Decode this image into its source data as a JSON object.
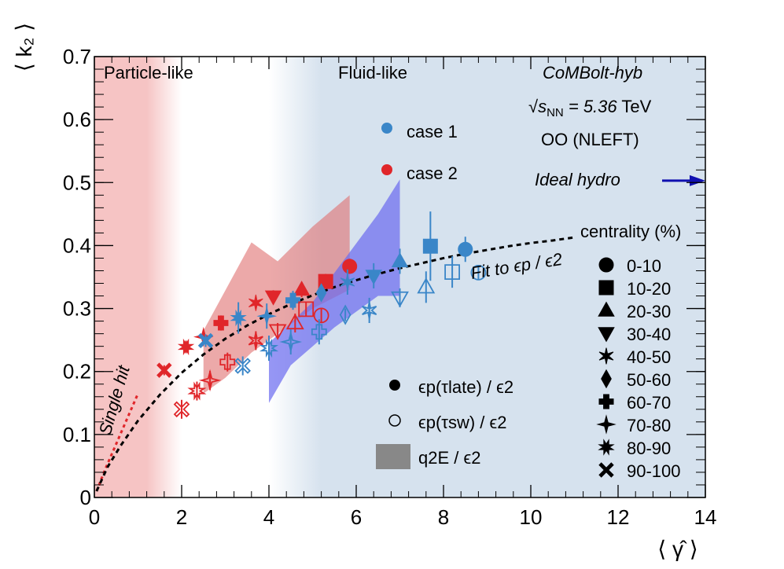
{
  "chart_data": {
    "type": "scatter",
    "xlabel": "⟨ γ̂ ⟩",
    "ylabel": "⟨ k₂ ⟩",
    "xlim": [
      0,
      14
    ],
    "ylim": [
      0,
      0.7
    ],
    "xticks": [
      "0",
      "2",
      "4",
      "6",
      "8",
      "10",
      "12",
      "14"
    ],
    "yticks": [
      "0",
      "0.1",
      "0.2",
      "0.3",
      "0.4",
      "0.5",
      "0.6",
      "0.7"
    ],
    "x_tick_values": [
      0,
      2,
      4,
      6,
      8,
      10,
      12,
      14
    ],
    "y_tick_values": [
      0,
      0.1,
      0.2,
      0.3,
      0.4,
      0.5,
      0.6,
      0.7
    ],
    "regions": {
      "particle_like": "Particle-like",
      "fluid_like": "Fluid-like"
    },
    "annotations": {
      "model": "CoMBolt-hyb",
      "energy_prefix": "√",
      "energy_s": "s",
      "energy_sub": "NN",
      "energy_value": " = 5.36",
      "energy_unit": " TeV",
      "system": "OO (NLEFT)",
      "ideal_hydro": "Ideal hydro",
      "fit": "Fit to ϵp / ϵ2",
      "single_hit": "Single hit"
    },
    "legend_case": [
      {
        "label": "case 1",
        "color": "#3a86c8"
      },
      {
        "label": "case 2",
        "color": "#e0262a"
      }
    ],
    "legend_quantity": [
      {
        "label": "ϵp(τlate) / ϵ2",
        "marker": "filled-circle"
      },
      {
        "label": "ϵp(τsw) / ϵ2",
        "marker": "open-circle"
      },
      {
        "label": "q2E / ϵ2",
        "marker": "grey-box"
      }
    ],
    "legend_centrality_title": "centrality (%)",
    "legend_centrality": [
      {
        "label": "0-10",
        "marker": "circle"
      },
      {
        "label": "10-20",
        "marker": "square"
      },
      {
        "label": "20-30",
        "marker": "triangle-up"
      },
      {
        "label": "30-40",
        "marker": "triangle-down"
      },
      {
        "label": "40-50",
        "marker": "star"
      },
      {
        "label": "50-60",
        "marker": "diamond"
      },
      {
        "label": "60-70",
        "marker": "cross"
      },
      {
        "label": "70-80",
        "marker": "star4"
      },
      {
        "label": "80-90",
        "marker": "cross-x"
      },
      {
        "label": "90-100",
        "marker": "x"
      }
    ],
    "colors": {
      "case1": "#3a86c8",
      "case2": "#e0262a",
      "fit": "#000000",
      "single_hit": "#e0262a",
      "ideal_hydro": "#1010b0",
      "band_case1": "#6a6af0",
      "band_case2": "#e07070",
      "particle_bg": "#f6c4c4",
      "fluid_bg": "#d6e2ee"
    },
    "ideal_hydro_y": 0.503,
    "fit_curve": [
      [
        0.05,
        0.01
      ],
      [
        0.3,
        0.048
      ],
      [
        0.6,
        0.082
      ],
      [
        1.0,
        0.122
      ],
      [
        1.5,
        0.163
      ],
      [
        2.0,
        0.198
      ],
      [
        2.5,
        0.227
      ],
      [
        3.0,
        0.252
      ],
      [
        3.5,
        0.273
      ],
      [
        4.0,
        0.291
      ],
      [
        4.5,
        0.307
      ],
      [
        5.0,
        0.321
      ],
      [
        5.5,
        0.334
      ],
      [
        6.0,
        0.345
      ],
      [
        6.5,
        0.355
      ],
      [
        7.0,
        0.364
      ],
      [
        7.5,
        0.372
      ],
      [
        8.0,
        0.38
      ],
      [
        8.5,
        0.387
      ],
      [
        9.0,
        0.393
      ],
      [
        9.5,
        0.399
      ],
      [
        10.0,
        0.404
      ],
      [
        10.5,
        0.408
      ],
      [
        11.0,
        0.413
      ]
    ],
    "single_hit_curve": [
      [
        0.05,
        0.01
      ],
      [
        0.25,
        0.045
      ],
      [
        0.5,
        0.085
      ],
      [
        0.75,
        0.125
      ],
      [
        1.0,
        0.165
      ]
    ],
    "series": [
      {
        "name": "case 2 late",
        "color": "#e0262a",
        "filled": true,
        "points": [
          {
            "c": "0-10",
            "x": 5.85,
            "y": 0.367,
            "err": 0.012
          },
          {
            "c": "10-20",
            "x": 5.3,
            "y": 0.343,
            "err": 0.012
          },
          {
            "c": "20-30",
            "x": 4.75,
            "y": 0.33,
            "err": 0.012
          },
          {
            "c": "30-40",
            "x": 4.1,
            "y": 0.319,
            "err": 0.01
          },
          {
            "c": "40-50",
            "x": 3.7,
            "y": 0.309,
            "err": 0.01
          },
          {
            "c": "60-70",
            "x": 2.9,
            "y": 0.277,
            "err": 0.012
          },
          {
            "c": "70-80",
            "x": 2.5,
            "y": 0.255,
            "err": 0.01
          },
          {
            "c": "80-90",
            "x": 2.1,
            "y": 0.239,
            "err": 0.01
          },
          {
            "c": "90-100",
            "x": 1.6,
            "y": 0.202,
            "err": 0.008
          }
        ]
      },
      {
        "name": "case 1 late",
        "color": "#3a86c8",
        "filled": true,
        "points": [
          {
            "c": "0-10",
            "x": 8.5,
            "y": 0.394,
            "err": 0.02
          },
          {
            "c": "10-20",
            "x": 7.7,
            "y": 0.399,
            "err": 0.055
          },
          {
            "c": "20-30",
            "x": 7.0,
            "y": 0.375,
            "err": 0.02
          },
          {
            "c": "30-40",
            "x": 6.4,
            "y": 0.352,
            "err": 0.02
          },
          {
            "c": "40-50",
            "x": 5.8,
            "y": 0.342,
            "err": 0.02
          },
          {
            "c": "50-60",
            "x": 5.2,
            "y": 0.325,
            "err": 0.01
          },
          {
            "c": "60-70",
            "x": 4.55,
            "y": 0.313,
            "err": 0.015
          },
          {
            "c": "70-80",
            "x": 3.95,
            "y": 0.288,
            "err": 0.02
          },
          {
            "c": "80-90",
            "x": 3.3,
            "y": 0.285,
            "err": 0.025
          },
          {
            "c": "90-100",
            "x": 2.55,
            "y": 0.249,
            "err": 0.01
          }
        ]
      },
      {
        "name": "case 2 sw",
        "color": "#e0262a",
        "filled": false,
        "points": [
          {
            "c": "0-10",
            "x": 5.2,
            "y": 0.289,
            "err": 0.012
          },
          {
            "c": "10-20",
            "x": 4.85,
            "y": 0.299,
            "err": 0.012
          },
          {
            "c": "20-30",
            "x": 4.6,
            "y": 0.277,
            "err": 0.015
          },
          {
            "c": "30-40",
            "x": 4.2,
            "y": 0.265,
            "err": 0.012
          },
          {
            "c": "40-50",
            "x": 3.7,
            "y": 0.249,
            "err": 0.015
          },
          {
            "c": "60-70",
            "x": 3.05,
            "y": 0.215,
            "err": 0.015
          },
          {
            "c": "70-80",
            "x": 2.65,
            "y": 0.186,
            "err": 0.015
          },
          {
            "c": "80-90",
            "x": 2.35,
            "y": 0.169,
            "err": 0.015
          },
          {
            "c": "90-100",
            "x": 2.0,
            "y": 0.14,
            "err": 0.015
          }
        ]
      },
      {
        "name": "case 1 sw",
        "color": "#3a86c8",
        "filled": false,
        "points": [
          {
            "c": "0-10",
            "x": 8.8,
            "y": 0.357,
            "err": 0.012
          },
          {
            "c": "10-20",
            "x": 8.2,
            "y": 0.358,
            "err": 0.025
          },
          {
            "c": "20-30",
            "x": 7.6,
            "y": 0.334,
            "err": 0.025
          },
          {
            "c": "30-40",
            "x": 7.0,
            "y": 0.317,
            "err": 0.015
          },
          {
            "c": "40-50",
            "x": 6.3,
            "y": 0.297,
            "err": 0.02
          },
          {
            "c": "50-60",
            "x": 5.75,
            "y": 0.29,
            "err": 0.01
          },
          {
            "c": "60-70",
            "x": 5.15,
            "y": 0.263,
            "err": 0.02
          },
          {
            "c": "70-80",
            "x": 4.5,
            "y": 0.247,
            "err": 0.02
          },
          {
            "c": "80-90",
            "x": 4.0,
            "y": 0.237,
            "err": 0.02
          },
          {
            "c": "90-100",
            "x": 3.4,
            "y": 0.209,
            "err": 0.015
          }
        ]
      }
    ],
    "bands": [
      {
        "name": "case 2 q2E",
        "color": "#e07070",
        "points": [
          [
            2.5,
            0.265
          ],
          [
            3.6,
            0.405
          ],
          [
            4.2,
            0.375
          ],
          [
            5.0,
            0.43
          ],
          [
            5.85,
            0.48
          ],
          [
            5.85,
            0.33
          ],
          [
            5.0,
            0.3
          ],
          [
            4.2,
            0.26
          ],
          [
            3.6,
            0.23
          ],
          [
            3.0,
            0.19
          ],
          [
            2.5,
            0.165
          ]
        ]
      },
      {
        "name": "case 1 q2E",
        "color": "#6a6af0",
        "points": [
          [
            4.0,
            0.245
          ],
          [
            5.0,
            0.31
          ],
          [
            6.5,
            0.45
          ],
          [
            7.0,
            0.505
          ],
          [
            7.0,
            0.32
          ],
          [
            6.5,
            0.32
          ],
          [
            5.5,
            0.27
          ],
          [
            4.5,
            0.21
          ],
          [
            4.0,
            0.15
          ]
        ]
      }
    ]
  }
}
